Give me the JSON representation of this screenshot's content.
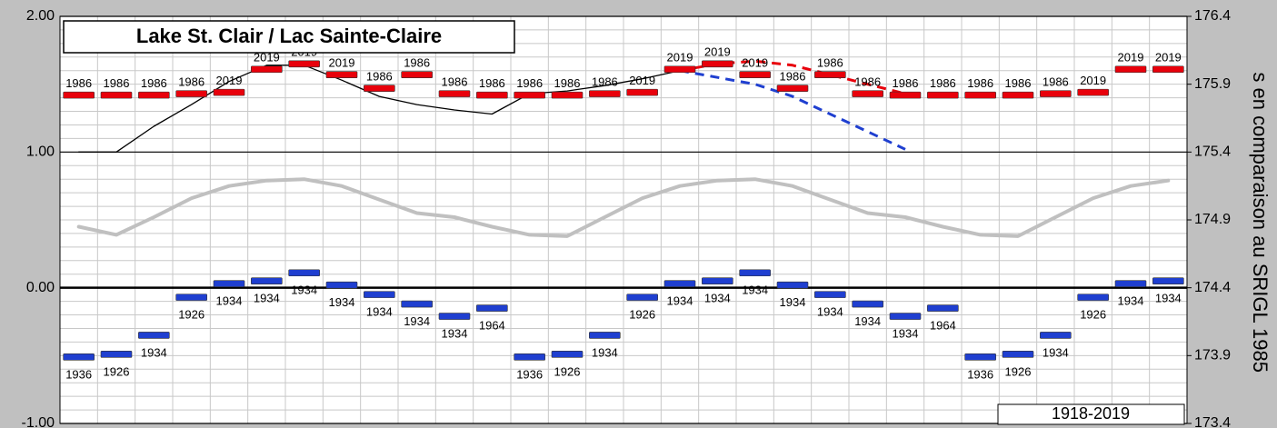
{
  "chart_data": {
    "type": "bar",
    "title": "Lake St. Clair / Lac Sainte-Claire",
    "period": "1918-2019",
    "y2_label": "s en comparaison au SRIGL 1985",
    "categories": [
      null,
      null,
      null,
      null,
      null,
      null,
      null,
      null,
      null,
      null,
      null,
      null,
      null,
      null,
      null,
      null,
      null,
      null,
      null,
      null,
      null,
      null,
      null,
      null,
      null,
      null,
      null,
      null,
      null,
      null
    ],
    "ylim": [
      -1,
      2
    ],
    "yticks": [
      {
        "value": -1,
        "label": "-1.00"
      },
      {
        "value": 0,
        "label": "0.00"
      },
      {
        "value": 1,
        "label": "1.00"
      },
      {
        "value": 2,
        "label": "2.00"
      }
    ],
    "y2lim": [
      173.4,
      176.4
    ],
    "y2ticks": [
      173.4,
      173.9,
      174.4,
      174.9,
      175.4,
      175.9,
      176.4
    ],
    "grid": true,
    "series": [
      {
        "style": "bar",
        "color": "#e8000b",
        "label_side": "above",
        "values": [
          1.42,
          1.42,
          1.42,
          1.43,
          1.44,
          1.61,
          1.65,
          1.57,
          1.47,
          1.57,
          1.43,
          1.42,
          1.42,
          1.42,
          1.43,
          1.44,
          1.61,
          1.65,
          1.57,
          1.47,
          1.57,
          1.43,
          1.42,
          1.42,
          1.42,
          1.42,
          1.43,
          1.44,
          1.61,
          1.61
        ],
        "record_years": [
          "1986",
          "1986",
          "1986",
          "1986",
          "2019",
          "2019",
          "2019",
          "2019",
          "1986",
          "1986",
          "1986",
          "1986",
          "1986",
          "1986",
          "1986",
          "2019",
          "2019",
          "2019",
          "2019",
          "1986",
          "1986",
          "1986",
          "1986",
          "1986",
          "1986",
          "1986",
          "1986",
          "2019",
          "2019",
          "2019"
        ]
      },
      {
        "style": "bar",
        "color": "#1f3fd0",
        "label_side": "below",
        "values": [
          -0.51,
          -0.49,
          -0.35,
          -0.07,
          0.03,
          0.05,
          0.11,
          0.02,
          -0.05,
          -0.12,
          -0.21,
          -0.15,
          -0.51,
          -0.49,
          -0.35,
          -0.07,
          0.03,
          0.05,
          0.11,
          0.02,
          -0.05,
          -0.12,
          -0.21,
          -0.15,
          -0.51,
          -0.49,
          -0.35,
          -0.07,
          0.03,
          0.05
        ],
        "record_years": [
          "1936",
          "1926",
          "1934",
          "1926",
          "1934",
          "1934",
          "1934",
          "1934",
          "1934",
          "1934",
          "1934",
          "1964",
          "1936",
          "1926",
          "1934",
          "1926",
          "1934",
          "1934",
          "1934",
          "1934",
          "1934",
          "1934",
          "1934",
          "1964",
          "1936",
          "1926",
          "1934",
          "1926",
          "1934",
          "1934"
        ]
      },
      {
        "style": "line",
        "color": "#c0c0c0",
        "width": 4,
        "values": [
          0.45,
          0.39,
          0.52,
          0.66,
          0.75,
          0.79,
          0.8,
          0.75,
          0.65,
          0.55,
          0.52,
          0.45,
          0.39,
          0.38,
          0.52,
          0.66,
          0.75,
          0.79,
          0.8,
          0.75,
          0.65,
          0.55,
          0.52,
          0.45,
          0.39,
          0.38,
          0.52,
          0.66,
          0.75,
          0.79
        ]
      },
      {
        "style": "line",
        "color": "#000000",
        "width": 1.3,
        "values": [
          1.0,
          1.0,
          1.19,
          1.35,
          1.52,
          1.64,
          1.64,
          1.53,
          1.41,
          1.35,
          1.31,
          1.28,
          1.43,
          1.45,
          1.49,
          1.54,
          1.6,
          null,
          null,
          null,
          null,
          null,
          null,
          null,
          null,
          null,
          null,
          null,
          null,
          null
        ]
      },
      {
        "style": "dashed",
        "color": "#e8000b",
        "width": 3,
        "values": [
          null,
          null,
          null,
          null,
          null,
          null,
          null,
          null,
          null,
          null,
          null,
          null,
          null,
          null,
          null,
          null,
          1.6,
          1.65,
          1.67,
          1.64,
          1.57,
          1.5,
          1.43,
          null,
          null,
          null,
          null,
          null,
          null,
          null
        ]
      },
      {
        "style": "dashed",
        "color": "#1f3fd0",
        "width": 3,
        "values": [
          null,
          null,
          null,
          null,
          null,
          null,
          null,
          null,
          null,
          null,
          null,
          null,
          null,
          null,
          null,
          null,
          1.6,
          1.55,
          1.5,
          1.41,
          1.28,
          1.15,
          1.02,
          null,
          null,
          null,
          null,
          null,
          null,
          null
        ]
      }
    ]
  }
}
